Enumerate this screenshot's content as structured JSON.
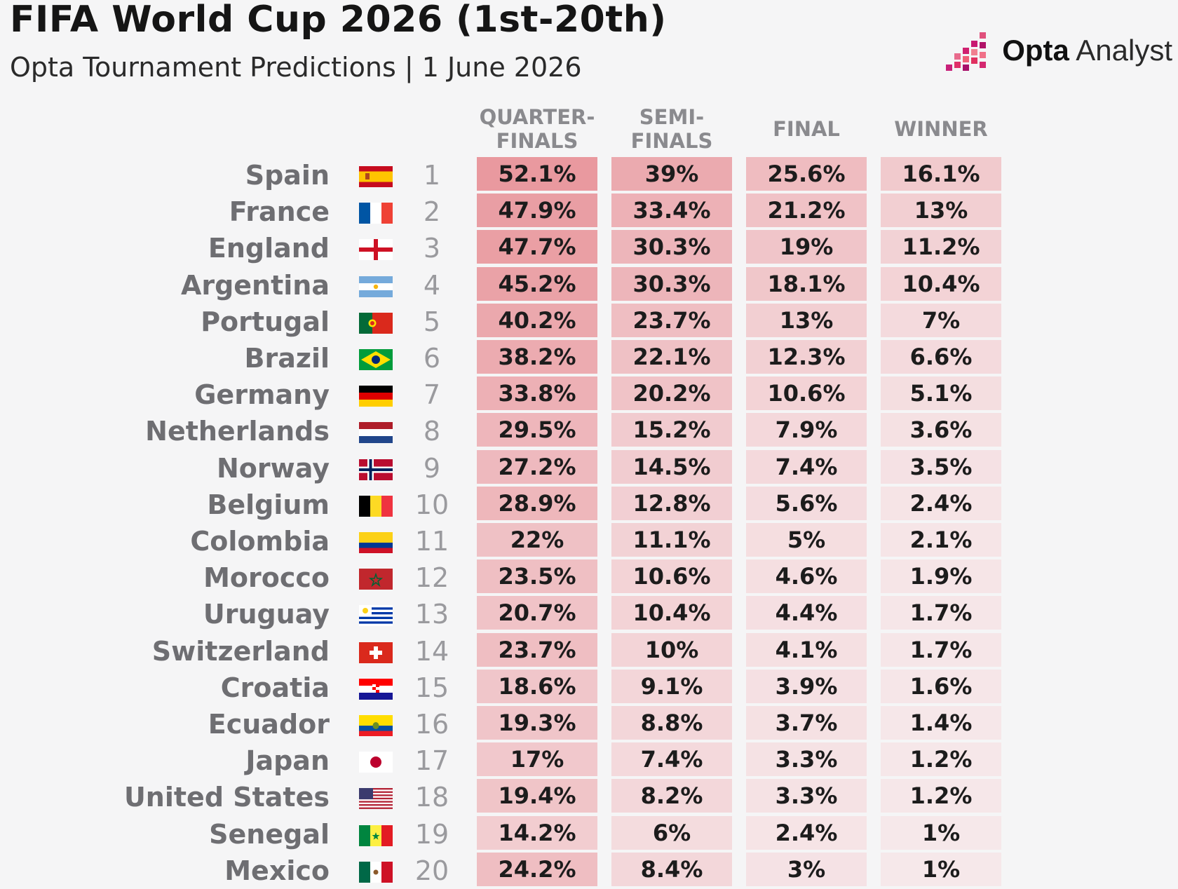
{
  "header": {
    "title": "FIFA World Cup 2026 (1st-20th)",
    "subtitle": "Opta Tournament Predictions | 1 June 2026",
    "brand_bold": "Opta",
    "brand_light": " Analyst"
  },
  "colors": {
    "heat_max": "#e8969c",
    "heat_min": "#f7ecee",
    "background": "#f5f5f6"
  },
  "chart_data": {
    "type": "table",
    "title": "FIFA World Cup 2026 (1st-20th)",
    "subtitle": "Opta Tournament Predictions | 1 June 2026",
    "columns": [
      "QUARTER-\nFINALS",
      "SEMI-\nFINALS",
      "FINAL",
      "WINNER"
    ],
    "rows": [
      {
        "team": "Spain",
        "flag": "spain-flag-icon",
        "rank": "1",
        "values": [
          "52.1%",
          "39%",
          "25.6%",
          "16.1%"
        ]
      },
      {
        "team": "France",
        "flag": "france-flag-icon",
        "rank": "2",
        "values": [
          "47.9%",
          "33.4%",
          "21.2%",
          "13%"
        ]
      },
      {
        "team": "England",
        "flag": "england-flag-icon",
        "rank": "3",
        "values": [
          "47.7%",
          "30.3%",
          "19%",
          "11.2%"
        ]
      },
      {
        "team": "Argentina",
        "flag": "argentina-flag-icon",
        "rank": "4",
        "values": [
          "45.2%",
          "30.3%",
          "18.1%",
          "10.4%"
        ]
      },
      {
        "team": "Portugal",
        "flag": "portugal-flag-icon",
        "rank": "5",
        "values": [
          "40.2%",
          "23.7%",
          "13%",
          "7%"
        ]
      },
      {
        "team": "Brazil",
        "flag": "brazil-flag-icon",
        "rank": "6",
        "values": [
          "38.2%",
          "22.1%",
          "12.3%",
          "6.6%"
        ]
      },
      {
        "team": "Germany",
        "flag": "germany-flag-icon",
        "rank": "7",
        "values": [
          "33.8%",
          "20.2%",
          "10.6%",
          "5.1%"
        ]
      },
      {
        "team": "Netherlands",
        "flag": "netherlands-flag-icon",
        "rank": "8",
        "values": [
          "29.5%",
          "15.2%",
          "7.9%",
          "3.6%"
        ]
      },
      {
        "team": "Norway",
        "flag": "norway-flag-icon",
        "rank": "9",
        "values": [
          "27.2%",
          "14.5%",
          "7.4%",
          "3.5%"
        ]
      },
      {
        "team": "Belgium",
        "flag": "belgium-flag-icon",
        "rank": "10",
        "values": [
          "28.9%",
          "12.8%",
          "5.6%",
          "2.4%"
        ]
      },
      {
        "team": "Colombia",
        "flag": "colombia-flag-icon",
        "rank": "11",
        "values": [
          "22%",
          "11.1%",
          "5%",
          "2.1%"
        ]
      },
      {
        "team": "Morocco",
        "flag": "morocco-flag-icon",
        "rank": "12",
        "values": [
          "23.5%",
          "10.6%",
          "4.6%",
          "1.9%"
        ]
      },
      {
        "team": "Uruguay",
        "flag": "uruguay-flag-icon",
        "rank": "13",
        "values": [
          "20.7%",
          "10.4%",
          "4.4%",
          "1.7%"
        ]
      },
      {
        "team": "Switzerland",
        "flag": "switzerland-flag-icon",
        "rank": "14",
        "values": [
          "23.7%",
          "10%",
          "4.1%",
          "1.7%"
        ]
      },
      {
        "team": "Croatia",
        "flag": "croatia-flag-icon",
        "rank": "15",
        "values": [
          "18.6%",
          "9.1%",
          "3.9%",
          "1.6%"
        ]
      },
      {
        "team": "Ecuador",
        "flag": "ecuador-flag-icon",
        "rank": "16",
        "values": [
          "19.3%",
          "8.8%",
          "3.7%",
          "1.4%"
        ]
      },
      {
        "team": "Japan",
        "flag": "japan-flag-icon",
        "rank": "17",
        "values": [
          "17%",
          "7.4%",
          "3.3%",
          "1.2%"
        ]
      },
      {
        "team": "United States",
        "flag": "usa-flag-icon",
        "rank": "18",
        "values": [
          "19.4%",
          "8.2%",
          "3.3%",
          "1.2%"
        ]
      },
      {
        "team": "Senegal",
        "flag": "senegal-flag-icon",
        "rank": "19",
        "values": [
          "14.2%",
          "6%",
          "2.4%",
          "1%"
        ]
      },
      {
        "team": "Mexico",
        "flag": "mexico-flag-icon",
        "rank": "20",
        "values": [
          "24.2%",
          "8.4%",
          "3%",
          "1%"
        ]
      }
    ]
  }
}
